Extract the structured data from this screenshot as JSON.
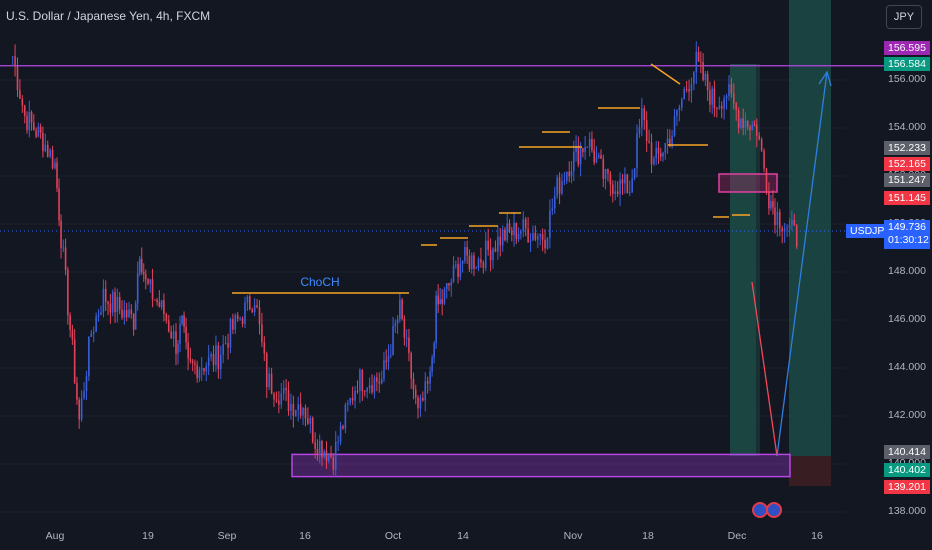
{
  "header": {
    "symbol_title": "U.S. Dollar / Japanese Yen, 4h, FXCM",
    "currency_button": "JPY"
  },
  "colors": {
    "background": "#131722",
    "bull_candle": "#3a5fd9",
    "bear_candle": "#e0435a",
    "purple_line": "#b646e6",
    "orange_level": "#f7a325",
    "blue_arrow": "#2f7fe0",
    "red_arrow": "#f24858",
    "teal_zone": "#1c4a45",
    "price_line": "#2962ff"
  },
  "price_badges": [
    {
      "label": "156.595",
      "color": "#9c27b0"
    },
    {
      "label": "156.584",
      "color": "#089981"
    },
    {
      "label": "152.233",
      "color": "#5d606b"
    },
    {
      "label": "152.165",
      "color": "#f23645"
    },
    {
      "label": "151.247",
      "color": "#5d606b"
    },
    {
      "label": "151.145",
      "color": "#f23645"
    },
    {
      "label": "140.414",
      "color": "#5d606b"
    },
    {
      "label": "140.402",
      "color": "#089981"
    },
    {
      "label": "139.201",
      "color": "#f23645"
    }
  ],
  "current": {
    "symbol": "USDJPY",
    "price": "149.736",
    "countdown": "01:30:12"
  },
  "annotations": {
    "choch_label": "ChoCH"
  },
  "chart_data": {
    "type": "candlestick",
    "interval": "4h",
    "y_ticks": [
      138,
      140,
      142,
      144,
      146,
      148,
      150,
      152,
      154,
      156
    ],
    "y_tick_labels": [
      "138.000",
      "140.000",
      "142.000",
      "144.000",
      "146.000",
      "148.000",
      "150.000",
      "152.000",
      "154.000",
      "156.000"
    ],
    "x_tick_labels": [
      "Aug",
      "19",
      "Sep",
      "16",
      "Oct",
      "14",
      "Nov",
      "18",
      "Dec",
      "16"
    ],
    "ylim": [
      137.5,
      158.5
    ],
    "price_path": [
      [
        "Jul 25",
        157.0
      ],
      [
        "Jul 27",
        154.5
      ],
      [
        "Jul 30",
        153.5
      ],
      [
        "Aug 1",
        152.5
      ],
      [
        "Aug 2",
        149.5
      ],
      [
        "Aug 5",
        141.8
      ],
      [
        "Aug 7",
        145.5
      ],
      [
        "Aug 9",
        147.0
      ],
      [
        "Aug 14",
        146.0
      ],
      [
        "Aug 15",
        149.0
      ],
      [
        "Aug 16",
        147.5
      ],
      [
        "Aug 19",
        146.3
      ],
      [
        "Aug 21",
        145.0
      ],
      [
        "Aug 22",
        145.8
      ],
      [
        "Aug 23",
        144.0
      ],
      [
        "Aug 26",
        144.2
      ],
      [
        "Aug 28",
        144.5
      ],
      [
        "Aug 30",
        145.5
      ],
      [
        "Sep 3",
        147.0
      ],
      [
        "Sep 5",
        143.5
      ],
      [
        "Sep 9",
        142.5
      ],
      [
        "Sep 11",
        142.5
      ],
      [
        "Sep 13",
        141.0
      ],
      [
        "Sep 16",
        140.3
      ],
      [
        "Sep 18",
        142.0
      ],
      [
        "Sep 20",
        143.5
      ],
      [
        "Sep 24",
        143.5
      ],
      [
        "Sep 27",
        146.4
      ],
      [
        "Sep 30",
        142.0
      ],
      [
        "Oct 2",
        143.5
      ],
      [
        "Oct 3",
        146.5
      ],
      [
        "Oct 4",
        146.8
      ],
      [
        "Oct 7",
        148.5
      ],
      [
        "Oct 10",
        148.5
      ],
      [
        "Oct 14",
        149.5
      ],
      [
        "Oct 17",
        149.8
      ],
      [
        "Oct 21",
        149.5
      ],
      [
        "Oct 23",
        151.5
      ],
      [
        "Oct 25",
        152.5
      ],
      [
        "Oct 28",
        153.5
      ],
      [
        "Oct 31",
        151.8
      ],
      [
        "Nov 4",
        151.5
      ],
      [
        "Nov 6",
        154.5
      ],
      [
        "Nov 8",
        152.5
      ],
      [
        "Nov 11",
        153.8
      ],
      [
        "Nov 13",
        155.5
      ],
      [
        "Nov 15",
        156.7
      ],
      [
        "Nov 18",
        155.0
      ],
      [
        "Nov 20",
        155.5
      ],
      [
        "Nov 22",
        154.5
      ],
      [
        "Nov 25",
        154.0
      ],
      [
        "Nov 27",
        151.2
      ],
      [
        "Nov 28",
        150.5
      ],
      [
        "Dec 2",
        149.3
      ]
    ],
    "levels": {
      "resistance": 156.595,
      "choch": 147.1,
      "target": 156.584,
      "stop": 139.201,
      "demand_zone": [
        139.6,
        140.4
      ],
      "supply_zone": [
        151.25,
        152.2
      ]
    },
    "projection": [
      [
        "Dec 2",
        149.3
      ],
      [
        "Dec 6",
        140.4
      ],
      [
        "Dec 10",
        156.4
      ]
    ]
  }
}
